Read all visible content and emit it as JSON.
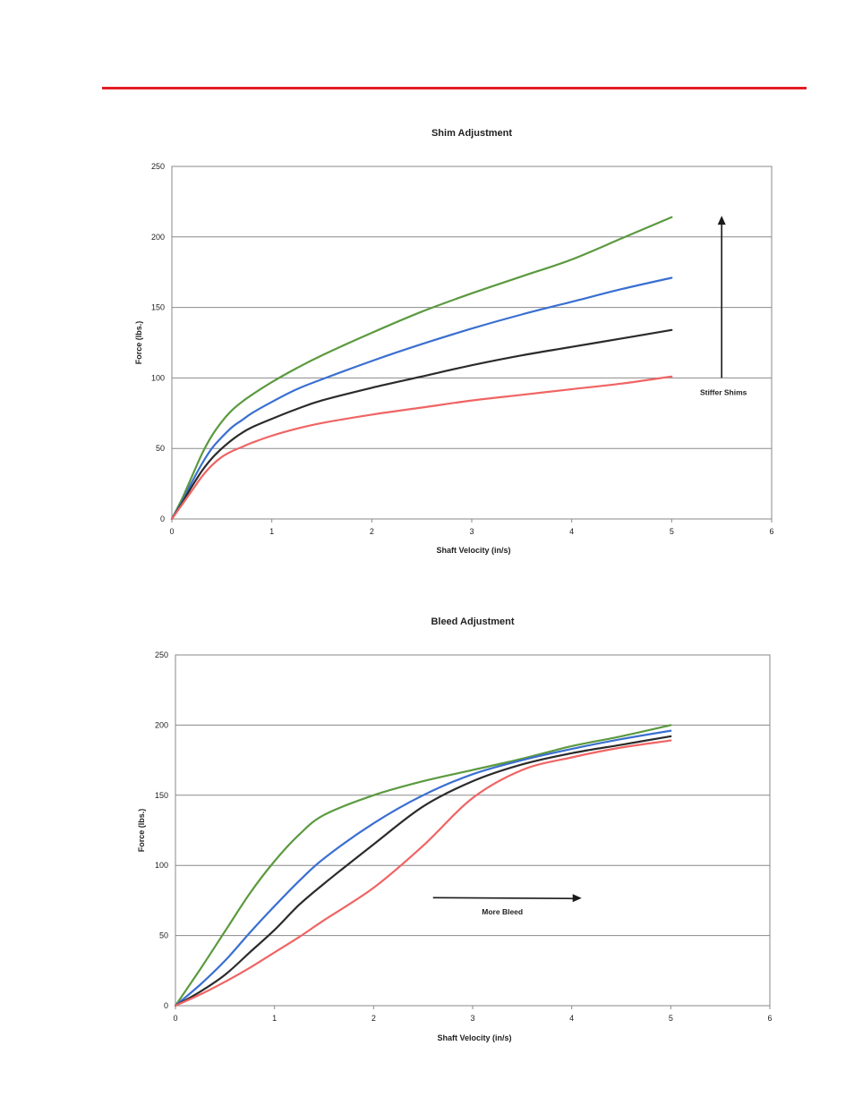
{
  "colors": {
    "rule": "#e31e24",
    "green": "#5b9a3f",
    "blue": "#3a6fd1",
    "black": "#2b2b2b",
    "red": "#f06464"
  },
  "chart_data": [
    {
      "type": "line",
      "title": "Shim Adjustment",
      "xlabel": "Shaft Velocity (in/s)",
      "ylabel": "Force (lbs.)",
      "xlim": [
        0,
        6
      ],
      "ylim": [
        0,
        250
      ],
      "xticks": [
        "0",
        "1",
        "2",
        "3",
        "4",
        "5",
        "6"
      ],
      "yticks": [
        "0",
        "50",
        "100",
        "150",
        "200",
        "250"
      ],
      "annotation": {
        "text": "Stiffer Shims",
        "arrow": "up",
        "x": 5.5,
        "y_from": 100,
        "y_to": 215,
        "text_y": 88
      },
      "series": [
        {
          "name": "green",
          "color": "#5b9a3f",
          "x": [
            0,
            0.1,
            0.2,
            0.3,
            0.4,
            0.5,
            0.6,
            0.7,
            0.8,
            1.0,
            1.25,
            1.5,
            2,
            2.5,
            3,
            3.5,
            4,
            4.5,
            5
          ],
          "y": [
            0,
            14,
            30,
            46,
            59,
            69,
            77,
            83,
            88,
            97,
            107,
            116,
            132,
            147,
            160,
            172,
            184,
            199,
            214
          ]
        },
        {
          "name": "blue",
          "color": "#3a6fd1",
          "x": [
            0,
            0.1,
            0.2,
            0.3,
            0.4,
            0.5,
            0.6,
            0.7,
            0.8,
            1.0,
            1.25,
            1.5,
            2,
            2.5,
            3,
            3.5,
            4,
            4.5,
            5
          ],
          "y": [
            0,
            12,
            26,
            39,
            50,
            58,
            65,
            70,
            75,
            83,
            92,
            99,
            112,
            124,
            135,
            145,
            154,
            163,
            171
          ]
        },
        {
          "name": "black",
          "color": "#2b2b2b",
          "x": [
            0,
            0.1,
            0.2,
            0.3,
            0.4,
            0.5,
            0.6,
            0.7,
            0.8,
            1.0,
            1.25,
            1.5,
            2,
            2.5,
            3,
            3.5,
            4,
            4.5,
            5
          ],
          "y": [
            0,
            11,
            23,
            34,
            43,
            50,
            56,
            61,
            65,
            71,
            78,
            84,
            93,
            101,
            109,
            116,
            122,
            128,
            134
          ]
        },
        {
          "name": "red",
          "color": "#f06464",
          "x": [
            0,
            0.1,
            0.2,
            0.3,
            0.4,
            0.5,
            0.6,
            0.7,
            0.8,
            1.0,
            1.25,
            1.5,
            2,
            2.5,
            3,
            3.5,
            4,
            4.5,
            5
          ],
          "y": [
            0,
            10,
            20,
            30,
            38,
            44,
            48,
            51,
            54,
            59,
            64,
            68,
            74,
            79,
            84,
            88,
            92,
            96,
            101
          ]
        }
      ]
    },
    {
      "type": "line",
      "title": "Bleed Adjustment",
      "xlabel": "Shaft Velocity (in/s)",
      "ylabel": "Force (lbs.)",
      "xlim": [
        0,
        6
      ],
      "ylim": [
        0,
        250
      ],
      "xticks": [
        "0",
        "1",
        "2",
        "3",
        "4",
        "5",
        "6"
      ],
      "yticks": [
        "0",
        "50",
        "100",
        "150",
        "200",
        "250"
      ],
      "annotation": {
        "text": "More Bleed",
        "arrow": "right",
        "y": 77,
        "x_from": 2.6,
        "x_to": 4.1,
        "text_x": 3.3,
        "text_y": 65
      },
      "series": [
        {
          "name": "green",
          "color": "#5b9a3f",
          "x": [
            0,
            0.25,
            0.5,
            0.75,
            1,
            1.25,
            1.5,
            2,
            2.5,
            3,
            3.5,
            4,
            4.5,
            5
          ],
          "y": [
            0,
            26,
            53,
            80,
            103,
            122,
            136,
            150,
            160,
            168,
            176,
            185,
            192,
            200
          ]
        },
        {
          "name": "blue",
          "color": "#3a6fd1",
          "x": [
            0,
            0.25,
            0.5,
            0.75,
            1,
            1.25,
            1.5,
            2,
            2.5,
            3,
            3.5,
            4,
            4.5,
            5
          ],
          "y": [
            0,
            15,
            32,
            52,
            71,
            89,
            105,
            130,
            150,
            165,
            175,
            183,
            190,
            196
          ]
        },
        {
          "name": "black",
          "color": "#2b2b2b",
          "x": [
            0,
            0.25,
            0.5,
            0.75,
            1,
            1.25,
            1.5,
            2,
            2.5,
            3,
            3.5,
            4,
            4.5,
            5
          ],
          "y": [
            0,
            10,
            22,
            38,
            54,
            72,
            87,
            115,
            142,
            160,
            172,
            180,
            186,
            192
          ]
        },
        {
          "name": "red",
          "color": "#f06464",
          "x": [
            0,
            0.25,
            0.5,
            0.75,
            1,
            1.25,
            1.5,
            2,
            2.5,
            3,
            3.5,
            4,
            4.5,
            5
          ],
          "y": [
            0,
            8,
            17,
            27,
            38,
            49,
            61,
            84,
            114,
            148,
            168,
            177,
            184,
            189
          ]
        }
      ]
    }
  ]
}
